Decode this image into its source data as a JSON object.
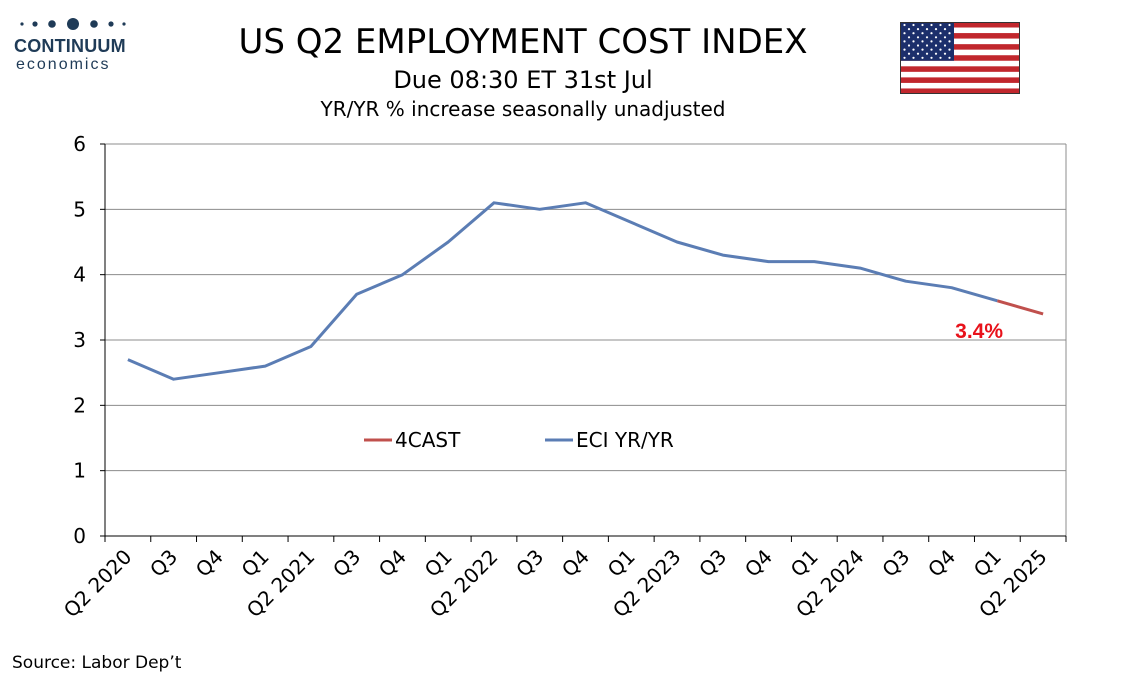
{
  "header": {
    "logo_name": "CONTINUUM",
    "logo_sub": "economics",
    "title": "US Q2  EMPLOYMENT COST INDEX",
    "subtitle1": "Due 08:30 ET 31st Jul",
    "subtitle2": "YR/YR % increase seasonally unadjusted"
  },
  "footer": {
    "source": "Source: Labor Dep’t"
  },
  "colors": {
    "eci": "#5b7db4",
    "forecast": "#c0504d",
    "annotation": "#e8121b",
    "brand": "#1f3b57"
  },
  "flag": {
    "name": "us-flag-icon"
  },
  "chart_data": {
    "type": "line",
    "categories": [
      "Q2 2020",
      "Q3",
      "Q4",
      "Q1",
      "Q2 2021",
      "Q3",
      "Q4",
      "Q1",
      "Q2 2022",
      "Q3",
      "Q4",
      "Q1",
      "Q2 2023",
      "Q3",
      "Q4",
      "Q1",
      "Q2 2024",
      "Q3",
      "Q4",
      "Q1",
      "Q2 2025"
    ],
    "series": [
      {
        "name": "ECI YR/YR",
        "values": [
          2.7,
          2.4,
          2.5,
          2.6,
          2.9,
          3.7,
          4.0,
          4.5,
          5.1,
          5.0,
          5.1,
          4.8,
          4.5,
          4.3,
          4.2,
          4.2,
          4.1,
          3.9,
          3.8,
          3.6,
          null
        ]
      },
      {
        "name": "4CAST",
        "values": [
          null,
          null,
          null,
          null,
          null,
          null,
          null,
          null,
          null,
          null,
          null,
          null,
          null,
          null,
          null,
          null,
          null,
          null,
          null,
          3.6,
          3.4
        ]
      }
    ],
    "ylim": [
      0,
      6
    ],
    "yticks": [
      0,
      1,
      2,
      3,
      4,
      5,
      6
    ],
    "grid": true,
    "legend_position": "center",
    "annotation": {
      "text": "3.4%",
      "category": "Q2 2025",
      "value": 3.4
    }
  }
}
